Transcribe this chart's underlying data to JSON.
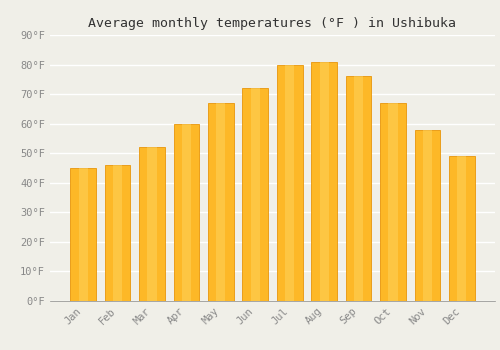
{
  "title": "Average monthly temperatures (°F ) in Ushibuka",
  "months": [
    "Jan",
    "Feb",
    "Mar",
    "Apr",
    "May",
    "Jun",
    "Jul",
    "Aug",
    "Sep",
    "Oct",
    "Nov",
    "Dec"
  ],
  "values": [
    45,
    46,
    52,
    60,
    67,
    72,
    80,
    81,
    76,
    67,
    58,
    49
  ],
  "bar_color_main": "#FDB827",
  "bar_color_edge": "#E8960A",
  "background_color": "#F0EFE8",
  "grid_color": "#FFFFFF",
  "ylim": [
    0,
    90
  ],
  "yticks": [
    0,
    10,
    20,
    30,
    40,
    50,
    60,
    70,
    80,
    90
  ],
  "ytick_labels": [
    "0°F",
    "10°F",
    "20°F",
    "30°F",
    "40°F",
    "50°F",
    "60°F",
    "70°F",
    "80°F",
    "90°F"
  ],
  "title_fontsize": 9.5,
  "tick_fontsize": 7.5,
  "font_color": "#888888",
  "title_color": "#333333"
}
